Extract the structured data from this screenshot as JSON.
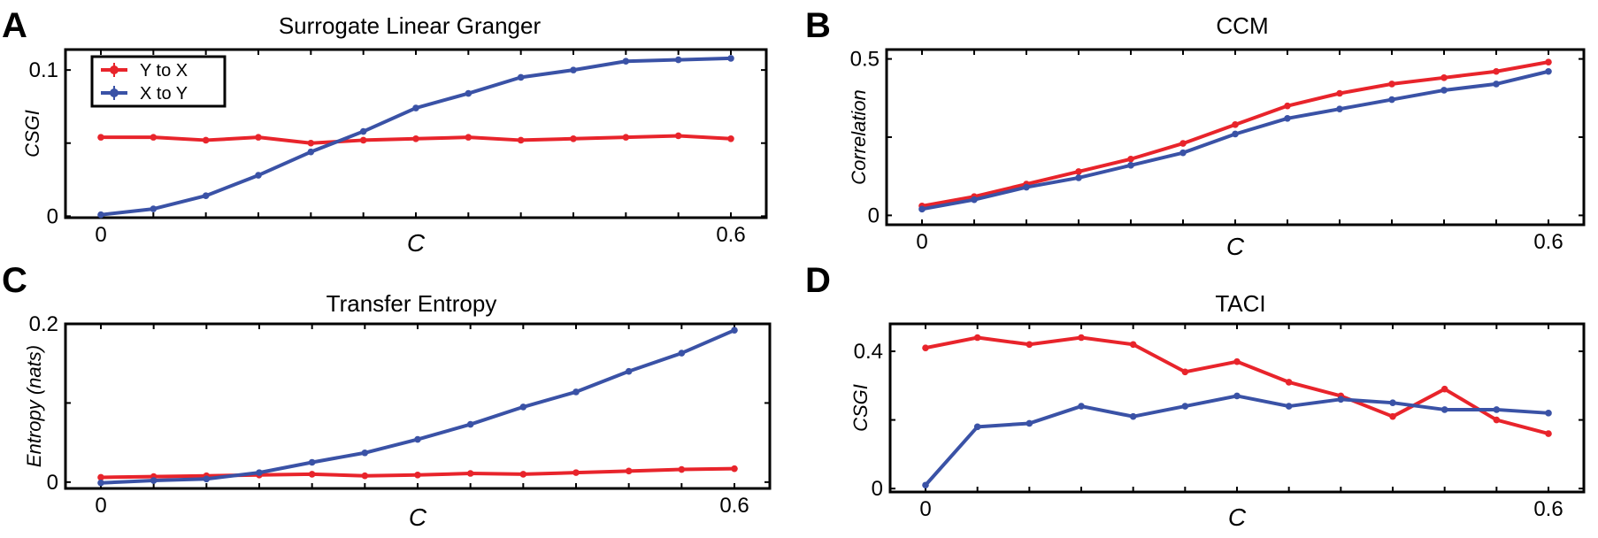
{
  "chart_data": [
    {
      "id": "A",
      "letter": "A",
      "type": "line",
      "title": "Surrogate Linear Granger",
      "xlabel": "C",
      "ylabel": "CSGI",
      "xlim": [
        0,
        0.6
      ],
      "ylim": [
        -0.001,
        0.114
      ],
      "xticks": [
        0,
        0.05,
        0.1,
        0.15,
        0.2,
        0.25,
        0.3,
        0.35,
        0.4,
        0.45,
        0.5,
        0.55,
        0.6
      ],
      "xtick_labels": [
        "0",
        "",
        "",
        "",
        "",
        "",
        "",
        "",
        "",
        "",
        "",
        "",
        "0.6"
      ],
      "yticks": [
        0,
        0.05,
        0.1
      ],
      "ytick_labels": [
        "0",
        "",
        "0.1"
      ],
      "legend": true,
      "series": [
        {
          "name": "Y to X",
          "color": "#e8242b",
          "x": [
            0,
            0.05,
            0.1,
            0.15,
            0.2,
            0.25,
            0.3,
            0.35,
            0.4,
            0.45,
            0.5,
            0.55,
            0.6
          ],
          "values": [
            0.054,
            0.054,
            0.052,
            0.054,
            0.05,
            0.052,
            0.053,
            0.054,
            0.052,
            0.053,
            0.054,
            0.055,
            0.053
          ]
        },
        {
          "name": "X to Y",
          "color": "#3a52a6",
          "x": [
            0,
            0.05,
            0.1,
            0.15,
            0.2,
            0.25,
            0.3,
            0.35,
            0.4,
            0.45,
            0.5,
            0.55,
            0.6
          ],
          "values": [
            0.001,
            0.005,
            0.014,
            0.028,
            0.044,
            0.058,
            0.074,
            0.084,
            0.095,
            0.1,
            0.106,
            0.107,
            0.108
          ]
        }
      ]
    },
    {
      "id": "B",
      "letter": "B",
      "type": "line",
      "title": "CCM",
      "xlabel": "C",
      "ylabel": "Correlation",
      "xlim": [
        0,
        0.6
      ],
      "ylim": [
        -0.03,
        0.53
      ],
      "xticks": [
        0,
        0.05,
        0.1,
        0.15,
        0.2,
        0.25,
        0.3,
        0.35,
        0.4,
        0.45,
        0.5,
        0.55,
        0.6
      ],
      "xtick_labels": [
        "0",
        "",
        "",
        "",
        "",
        "",
        "",
        "",
        "",
        "",
        "",
        "",
        "0.6"
      ],
      "yticks": [
        0,
        0.25,
        0.5
      ],
      "ytick_labels": [
        "0",
        "",
        "0.5"
      ],
      "legend": false,
      "series": [
        {
          "name": "Y to X",
          "color": "#e8242b",
          "x": [
            0,
            0.05,
            0.1,
            0.15,
            0.2,
            0.25,
            0.3,
            0.35,
            0.4,
            0.45,
            0.5,
            0.55,
            0.6
          ],
          "values": [
            0.03,
            0.06,
            0.1,
            0.14,
            0.18,
            0.23,
            0.29,
            0.35,
            0.39,
            0.42,
            0.44,
            0.46,
            0.49
          ]
        },
        {
          "name": "X to Y",
          "color": "#3a52a6",
          "x": [
            0,
            0.05,
            0.1,
            0.15,
            0.2,
            0.25,
            0.3,
            0.35,
            0.4,
            0.45,
            0.5,
            0.55,
            0.6
          ],
          "values": [
            0.02,
            0.05,
            0.09,
            0.12,
            0.16,
            0.2,
            0.26,
            0.31,
            0.34,
            0.37,
            0.4,
            0.42,
            0.46
          ]
        }
      ]
    },
    {
      "id": "C",
      "letter": "C",
      "type": "line",
      "title": "Transfer Entropy",
      "xlabel": "C",
      "ylabel": "Entropy (nats)",
      "xlim": [
        0,
        0.6
      ],
      "ylim": [
        -0.008,
        0.2
      ],
      "xticks": [
        0,
        0.05,
        0.1,
        0.15,
        0.2,
        0.25,
        0.3,
        0.35,
        0.4,
        0.45,
        0.5,
        0.55,
        0.6
      ],
      "xtick_labels": [
        "0",
        "",
        "",
        "",
        "",
        "",
        "",
        "",
        "",
        "",
        "",
        "",
        "0.6"
      ],
      "yticks": [
        0,
        0.1,
        0.2
      ],
      "ytick_labels": [
        "0",
        "",
        "0.2"
      ],
      "legend": false,
      "series": [
        {
          "name": "Y to X",
          "color": "#e8242b",
          "x": [
            0,
            0.05,
            0.1,
            0.15,
            0.2,
            0.25,
            0.3,
            0.35,
            0.4,
            0.45,
            0.5,
            0.55,
            0.6
          ],
          "values": [
            0.006,
            0.007,
            0.008,
            0.009,
            0.01,
            0.008,
            0.009,
            0.011,
            0.01,
            0.012,
            0.014,
            0.016,
            0.017
          ]
        },
        {
          "name": "X to Y",
          "color": "#3a52a6",
          "x": [
            0,
            0.05,
            0.1,
            0.15,
            0.2,
            0.25,
            0.3,
            0.35,
            0.4,
            0.45,
            0.5,
            0.55,
            0.6
          ],
          "values": [
            -0.001,
            0.002,
            0.004,
            0.012,
            0.025,
            0.037,
            0.054,
            0.073,
            0.095,
            0.114,
            0.14,
            0.163,
            0.192
          ]
        }
      ]
    },
    {
      "id": "D",
      "letter": "D",
      "type": "line",
      "title": "TACI",
      "xlabel": "C",
      "ylabel": "CSGI",
      "xlim": [
        0,
        0.6
      ],
      "ylim": [
        -0.01,
        0.48
      ],
      "xticks": [
        0,
        0.05,
        0.1,
        0.15,
        0.2,
        0.25,
        0.3,
        0.35,
        0.4,
        0.45,
        0.5,
        0.55,
        0.6
      ],
      "xtick_labels": [
        "0",
        "",
        "",
        "",
        "",
        "",
        "",
        "",
        "",
        "",
        "",
        "",
        "0.6"
      ],
      "yticks": [
        0,
        0.2,
        0.4
      ],
      "ytick_labels": [
        "0",
        "",
        "0.4"
      ],
      "legend": false,
      "series": [
        {
          "name": "Y to X",
          "color": "#e8242b",
          "x": [
            0,
            0.05,
            0.1,
            0.15,
            0.2,
            0.25,
            0.3,
            0.35,
            0.4,
            0.45,
            0.5,
            0.55,
            0.6
          ],
          "values": [
            0.41,
            0.44,
            0.42,
            0.44,
            0.42,
            0.34,
            0.37,
            0.31,
            0.27,
            0.21,
            0.29,
            0.2,
            0.16
          ]
        },
        {
          "name": "X to Y",
          "color": "#3a52a6",
          "x": [
            0,
            0.05,
            0.1,
            0.15,
            0.2,
            0.25,
            0.3,
            0.35,
            0.4,
            0.45,
            0.5,
            0.55,
            0.6
          ],
          "values": [
            0.01,
            0.18,
            0.19,
            0.24,
            0.21,
            0.24,
            0.27,
            0.24,
            0.26,
            0.25,
            0.23,
            0.23,
            0.22
          ]
        }
      ]
    }
  ]
}
